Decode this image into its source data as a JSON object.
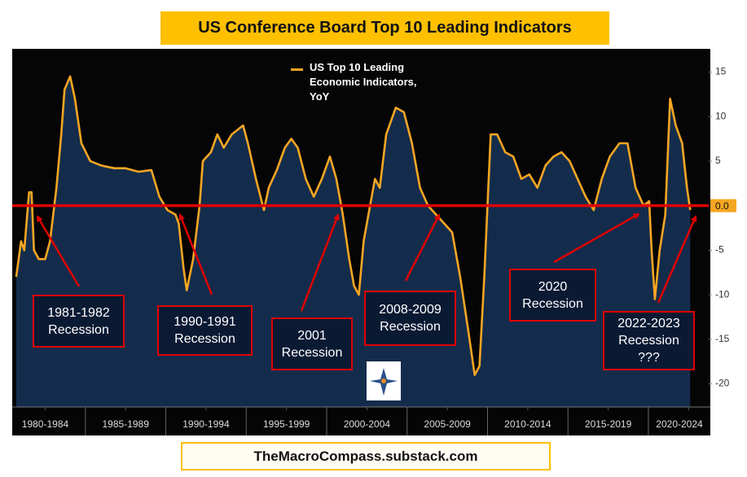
{
  "chart_data": {
    "type": "area",
    "title": "US Conference Board Top 10 Leading Indicators",
    "source": "TheMacroCompass.substack.com",
    "series": [
      {
        "name": "US Top 10 Leading Economic Indicators, YoY",
        "color": "#f5a623",
        "fill": "#142c4c",
        "x": [
          1980.7,
          1981,
          1981.2,
          1981.5,
          1981.65,
          1981.8,
          1982.1,
          1982.5,
          1982.8,
          1983.2,
          1983.5,
          1983.7,
          1984.05,
          1984.35,
          1984.75,
          1985.3,
          1986,
          1986.8,
          1987.5,
          1988.3,
          1989.1,
          1989.6,
          1990.1,
          1990.6,
          1990.8,
          1991.1,
          1991.3,
          1991.7,
          1992.1,
          1992.3,
          1992.8,
          1993.2,
          1993.6,
          1994.1,
          1994.8,
          1995.1,
          1995.6,
          1996.1,
          1996.4,
          1996.9,
          1997.4,
          1997.8,
          1998.2,
          1998.7,
          1999.2,
          1999.7,
          2000.2,
          2000.6,
          2001,
          2001.4,
          2001.7,
          2002,
          2002.3,
          2002.7,
          2003,
          2003.3,
          2003.7,
          2004.3,
          2004.8,
          2005.3,
          2005.8,
          2006.3,
          2006.8,
          2007.3,
          2007.8,
          2008.3,
          2008.8,
          2009.2,
          2009.5,
          2009.8,
          2010.2,
          2010.6,
          2011.1,
          2011.6,
          2012.1,
          2012.6,
          2013.1,
          2013.6,
          2014.1,
          2014.6,
          2015.1,
          2015.6,
          2016.1,
          2016.6,
          2017.1,
          2017.6,
          2018.2,
          2018.7,
          2019.2,
          2019.7,
          2020.05,
          2020.2,
          2020.4,
          2020.7,
          2021.05,
          2021.35,
          2021.7,
          2022.1,
          2022.4,
          2022.6
        ],
        "values": [
          -8,
          -4,
          -5,
          1.5,
          1.5,
          -5,
          -6,
          -6,
          -4,
          2,
          8,
          13,
          14.5,
          12,
          7,
          5,
          4.5,
          4.2,
          4.2,
          3.8,
          4,
          1,
          -0.5,
          -1,
          -2,
          -7,
          -9.5,
          -6,
          0,
          5,
          6,
          8,
          6.5,
          8,
          9,
          7,
          3,
          -0.5,
          2,
          4,
          6.5,
          7.5,
          6.5,
          3,
          1,
          3,
          5.5,
          3,
          -1,
          -6,
          -9,
          -10,
          -4,
          0,
          3,
          2,
          8,
          11,
          10.5,
          7,
          2,
          0,
          -1,
          -2,
          -3,
          -8,
          -14,
          -19,
          -18,
          -8,
          8,
          8,
          6,
          5.5,
          3,
          3.5,
          2,
          4.5,
          5.5,
          6,
          5,
          3,
          1,
          -0.5,
          3,
          5.5,
          7,
          7,
          2,
          0,
          0.5,
          -5,
          -10.5,
          -5,
          -1,
          12,
          9,
          7,
          2,
          -0.5
        ]
      }
    ],
    "xlim": [
      1980.45,
      2023.75
    ],
    "xticks": [
      {
        "value": 1982.5,
        "label": "1980-1984"
      },
      {
        "value": 1987.5,
        "label": "1985-1989"
      },
      {
        "value": 1992.5,
        "label": "1990-1994"
      },
      {
        "value": 1997.5,
        "label": "1995-1999"
      },
      {
        "value": 2002.5,
        "label": "2000-2004"
      },
      {
        "value": 2007.5,
        "label": "2005-2009"
      },
      {
        "value": 2012.5,
        "label": "2010-2014"
      },
      {
        "value": 2017.5,
        "label": "2015-2019"
      },
      {
        "value": 2022.5,
        "label": "2020-2024"
      }
    ],
    "ylim": [
      -22.6,
      17.6
    ],
    "yticks": [
      -20,
      -15,
      -10,
      -5,
      {
        "value": 0,
        "label": "0.0"
      },
      5,
      10,
      15
    ],
    "annotations": [
      "1981-1982 Recession",
      "1990-1991 Recession",
      "2001 Recession",
      "2008-2009 Recession",
      "2020 Recession",
      "2022-2023 Recession ???"
    ]
  }
}
